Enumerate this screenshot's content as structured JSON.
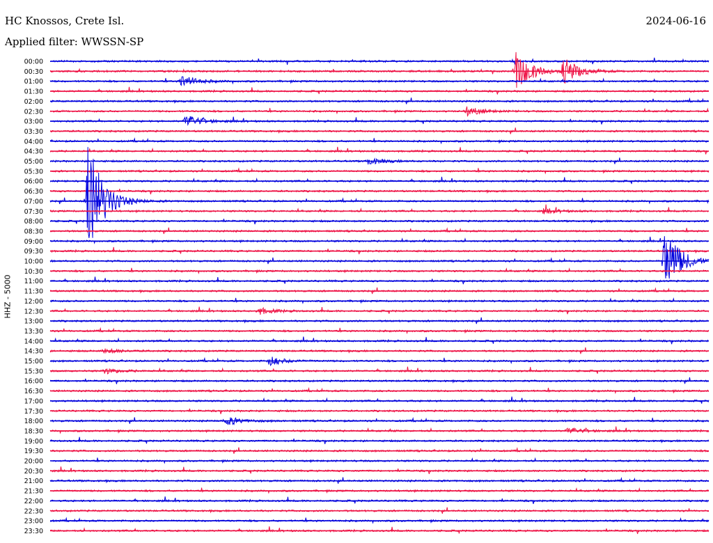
{
  "header": {
    "station": "HC Knossos, Crete Isl.",
    "date": "2024-06-16",
    "filter": "Applied filter: WWSSN-SP"
  },
  "chart_data": {
    "type": "line",
    "subtype": "helicorder",
    "ylabel": "HHZ - 5000",
    "colors": [
      "#0000dd",
      "#ee1144"
    ],
    "row_labels": [
      "00:00",
      "00:30",
      "01:00",
      "01:30",
      "02:00",
      "02:30",
      "03:00",
      "03:30",
      "04:00",
      "04:30",
      "05:00",
      "05:30",
      "06:00",
      "06:30",
      "07:00",
      "07:30",
      "08:00",
      "08:30",
      "09:00",
      "09:30",
      "10:00",
      "10:30",
      "11:00",
      "11:30",
      "12:00",
      "12:30",
      "13:00",
      "13:30",
      "14:00",
      "14:30",
      "15:00",
      "15:30",
      "16:00",
      "16:30",
      "17:00",
      "17:30",
      "18:00",
      "18:30",
      "19:00",
      "19:30",
      "20:00",
      "20:30",
      "21:00",
      "21:30",
      "22:00",
      "22:30",
      "23:00",
      "23:30"
    ],
    "row_minutes": 30,
    "grid": false,
    "events": [
      {
        "row": 1,
        "minute": 21.2,
        "amplitude": 10
      },
      {
        "row": 1,
        "minute": 23.4,
        "amplitude": 6
      },
      {
        "row": 2,
        "minute": 6.0,
        "amplitude": 3
      },
      {
        "row": 5,
        "minute": 19.0,
        "amplitude": 2
      },
      {
        "row": 6,
        "minute": 6.2,
        "amplitude": 3
      },
      {
        "row": 10,
        "minute": 14.5,
        "amplitude": 1.5
      },
      {
        "row": 14,
        "minute": 1.7,
        "amplitude": 30
      },
      {
        "row": 15,
        "minute": 22.5,
        "amplitude": 1.2
      },
      {
        "row": 20,
        "minute": 28.0,
        "amplitude": 16
      },
      {
        "row": 25,
        "minute": 9.5,
        "amplitude": 1.5
      },
      {
        "row": 29,
        "minute": 2.5,
        "amplitude": 1.2
      },
      {
        "row": 30,
        "minute": 10.0,
        "amplitude": 2
      },
      {
        "row": 31,
        "minute": 2.5,
        "amplitude": 1.2
      },
      {
        "row": 36,
        "minute": 8.0,
        "amplitude": 2
      },
      {
        "row": 37,
        "minute": 23.6,
        "amplitude": 1.5
      }
    ]
  }
}
